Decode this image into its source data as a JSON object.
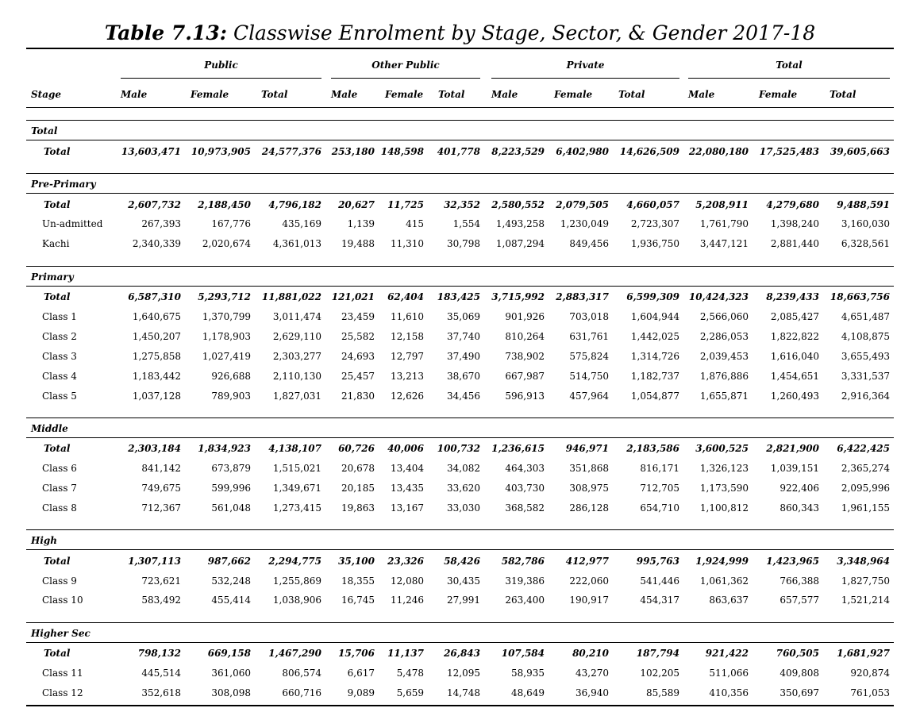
{
  "title": {
    "prefix": "Table 7.13:",
    "text": "Classwise Enrolment by Stage, Sector, & Gender 2017-18"
  },
  "header": {
    "groups": [
      "Public",
      "Other Public",
      "Private",
      "Total"
    ],
    "stage_label": "Stage",
    "columns": [
      "Male",
      "Female",
      "Total",
      "Male",
      "Female",
      "Total",
      "Male",
      "Female",
      "Total",
      "Male",
      "Female",
      "Total"
    ]
  },
  "sections": [
    {
      "name": "Total",
      "rows": [
        {
          "label": "Total",
          "values": [
            "13,603,471",
            "10,973,905",
            "24,577,376",
            "253,180",
            "148,598",
            "401,778",
            "8,223,529",
            "6,402,980",
            "14,626,509",
            "22,080,180",
            "17,525,483",
            "39,605,663"
          ]
        }
      ]
    },
    {
      "name": "Pre-Primary",
      "rows": [
        {
          "label": "Total",
          "values": [
            "2,607,732",
            "2,188,450",
            "4,796,182",
            "20,627",
            "11,725",
            "32,352",
            "2,580,552",
            "2,079,505",
            "4,660,057",
            "5,208,911",
            "4,279,680",
            "9,488,591"
          ]
        },
        {
          "label": "Un-admitted",
          "values": [
            "267,393",
            "167,776",
            "435,169",
            "1,139",
            "415",
            "1,554",
            "1,493,258",
            "1,230,049",
            "2,723,307",
            "1,761,790",
            "1,398,240",
            "3,160,030"
          ]
        },
        {
          "label": "Kachi",
          "values": [
            "2,340,339",
            "2,020,674",
            "4,361,013",
            "19,488",
            "11,310",
            "30,798",
            "1,087,294",
            "849,456",
            "1,936,750",
            "3,447,121",
            "2,881,440",
            "6,328,561"
          ]
        }
      ]
    },
    {
      "name": "Primary",
      "rows": [
        {
          "label": "Total",
          "values": [
            "6,587,310",
            "5,293,712",
            "11,881,022",
            "121,021",
            "62,404",
            "183,425",
            "3,715,992",
            "2,883,317",
            "6,599,309",
            "10,424,323",
            "8,239,433",
            "18,663,756"
          ]
        },
        {
          "label": "Class 1",
          "values": [
            "1,640,675",
            "1,370,799",
            "3,011,474",
            "23,459",
            "11,610",
            "35,069",
            "901,926",
            "703,018",
            "1,604,944",
            "2,566,060",
            "2,085,427",
            "4,651,487"
          ]
        },
        {
          "label": "Class 2",
          "values": [
            "1,450,207",
            "1,178,903",
            "2,629,110",
            "25,582",
            "12,158",
            "37,740",
            "810,264",
            "631,761",
            "1,442,025",
            "2,286,053",
            "1,822,822",
            "4,108,875"
          ]
        },
        {
          "label": "Class 3",
          "values": [
            "1,275,858",
            "1,027,419",
            "2,303,277",
            "24,693",
            "12,797",
            "37,490",
            "738,902",
            "575,824",
            "1,314,726",
            "2,039,453",
            "1,616,040",
            "3,655,493"
          ]
        },
        {
          "label": "Class 4",
          "values": [
            "1,183,442",
            "926,688",
            "2,110,130",
            "25,457",
            "13,213",
            "38,670",
            "667,987",
            "514,750",
            "1,182,737",
            "1,876,886",
            "1,454,651",
            "3,331,537"
          ]
        },
        {
          "label": "Class 5",
          "values": [
            "1,037,128",
            "789,903",
            "1,827,031",
            "21,830",
            "12,626",
            "34,456",
            "596,913",
            "457,964",
            "1,054,877",
            "1,655,871",
            "1,260,493",
            "2,916,364"
          ]
        }
      ]
    },
    {
      "name": "Middle",
      "rows": [
        {
          "label": "Total",
          "values": [
            "2,303,184",
            "1,834,923",
            "4,138,107",
            "60,726",
            "40,006",
            "100,732",
            "1,236,615",
            "946,971",
            "2,183,586",
            "3,600,525",
            "2,821,900",
            "6,422,425"
          ]
        },
        {
          "label": "Class 6",
          "values": [
            "841,142",
            "673,879",
            "1,515,021",
            "20,678",
            "13,404",
            "34,082",
            "464,303",
            "351,868",
            "816,171",
            "1,326,123",
            "1,039,151",
            "2,365,274"
          ]
        },
        {
          "label": "Class 7",
          "values": [
            "749,675",
            "599,996",
            "1,349,671",
            "20,185",
            "13,435",
            "33,620",
            "403,730",
            "308,975",
            "712,705",
            "1,173,590",
            "922,406",
            "2,095,996"
          ]
        },
        {
          "label": "Class 8",
          "values": [
            "712,367",
            "561,048",
            "1,273,415",
            "19,863",
            "13,167",
            "33,030",
            "368,582",
            "286,128",
            "654,710",
            "1,100,812",
            "860,343",
            "1,961,155"
          ]
        }
      ]
    },
    {
      "name": "High",
      "rows": [
        {
          "label": "Total",
          "values": [
            "1,307,113",
            "987,662",
            "2,294,775",
            "35,100",
            "23,326",
            "58,426",
            "582,786",
            "412,977",
            "995,763",
            "1,924,999",
            "1,423,965",
            "3,348,964"
          ]
        },
        {
          "label": "Class 9",
          "values": [
            "723,621",
            "532,248",
            "1,255,869",
            "18,355",
            "12,080",
            "30,435",
            "319,386",
            "222,060",
            "541,446",
            "1,061,362",
            "766,388",
            "1,827,750"
          ]
        },
        {
          "label": "Class 10",
          "values": [
            "583,492",
            "455,414",
            "1,038,906",
            "16,745",
            "11,246",
            "27,991",
            "263,400",
            "190,917",
            "454,317",
            "863,637",
            "657,577",
            "1,521,214"
          ]
        }
      ]
    },
    {
      "name": "Higher Sec",
      "rows": [
        {
          "label": "Total",
          "values": [
            "798,132",
            "669,158",
            "1,467,290",
            "15,706",
            "11,137",
            "26,843",
            "107,584",
            "80,210",
            "187,794",
            "921,422",
            "760,505",
            "1,681,927"
          ]
        },
        {
          "label": "Class 11",
          "values": [
            "445,514",
            "361,060",
            "806,574",
            "6,617",
            "5,478",
            "12,095",
            "58,935",
            "43,270",
            "102,205",
            "511,066",
            "409,808",
            "920,874"
          ]
        },
        {
          "label": "Class 12",
          "values": [
            "352,618",
            "308,098",
            "660,716",
            "9,089",
            "5,659",
            "14,748",
            "48,649",
            "36,940",
            "85,589",
            "410,356",
            "350,697",
            "761,053"
          ]
        }
      ]
    }
  ]
}
